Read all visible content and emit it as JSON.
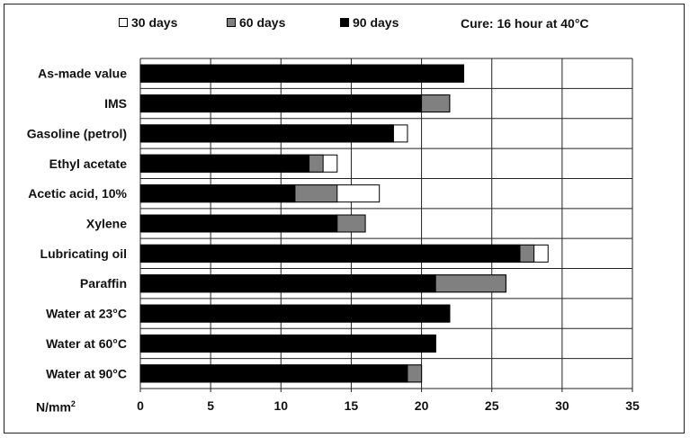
{
  "chart_data": {
    "type": "bar",
    "orientation": "horizontal",
    "stacked": "overlay",
    "title": "",
    "xlabel": "N/mm",
    "xlabel_superscript": "2",
    "note": "Cure: 16 hour at 40°C",
    "xlim": [
      0,
      35
    ],
    "xticks": [
      0,
      5,
      10,
      15,
      20,
      25,
      30,
      35
    ],
    "xtick_labels": [
      "0",
      "5",
      "10",
      "15",
      "20",
      "25",
      "30",
      "35"
    ],
    "grid": "vertical",
    "legend_placement": "top",
    "categories": [
      "As-made value",
      "IMS",
      "Gasoline (petrol)",
      "Ethyl acetate",
      "Acetic acid, 10%",
      "Xylene",
      "Lubricating oil",
      "Paraffin",
      "Water at 23°C",
      "Water at 60°C",
      "Water at 90°C"
    ],
    "series": [
      {
        "name": "30 days",
        "color": "#ffffff",
        "values": [
          23,
          22,
          19,
          14,
          17,
          16,
          29,
          26,
          22,
          21,
          20
        ]
      },
      {
        "name": "60 days",
        "color": "#808080",
        "values": [
          23,
          22,
          18,
          13,
          14,
          16,
          28,
          26,
          22,
          21,
          20
        ]
      },
      {
        "name": "90 days",
        "color": "#000000",
        "values": [
          23,
          20,
          18,
          12,
          11,
          14,
          27,
          21,
          22,
          21,
          19
        ]
      }
    ]
  }
}
